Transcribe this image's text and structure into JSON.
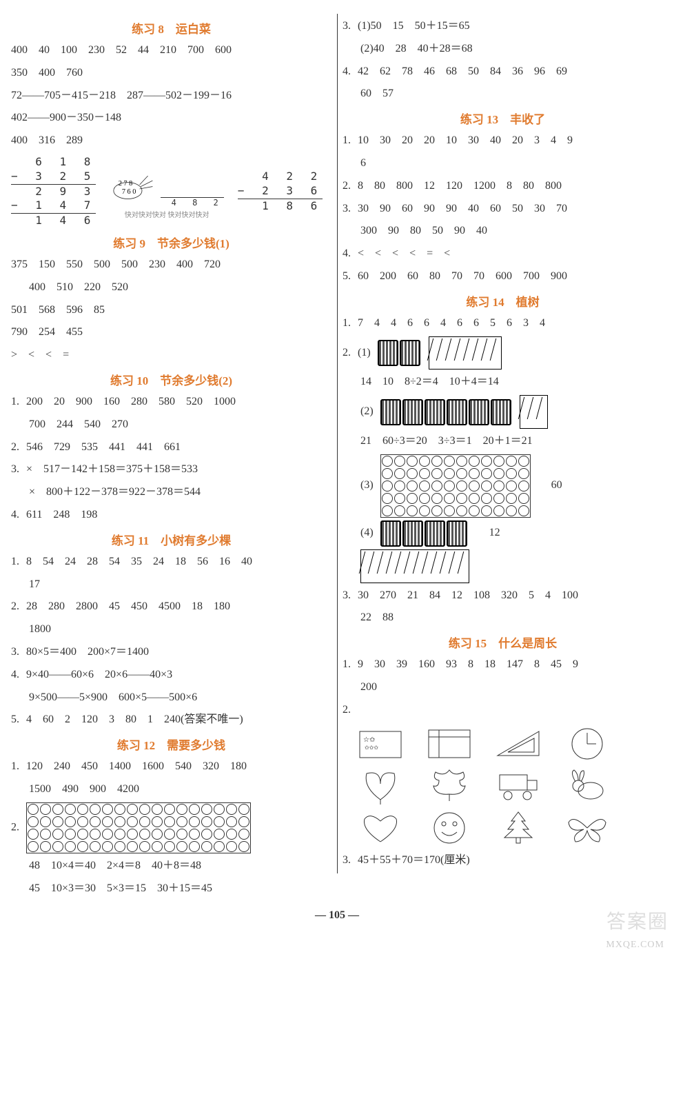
{
  "left": {
    "s8": {
      "title": "练习 8　运白菜",
      "r1": "400　40　100　230　52　44　210　700　600",
      "r2": "350　400　760",
      "r3": "72——705－415－218　287——502－199－16",
      "r4": "402——900－350－148",
      "r5": "400　316　289",
      "carrot_note": "快对快对快对\n快对快对快对"
    },
    "s9": {
      "title": "练习 9　节余多少钱(1)",
      "r1": "375　150　550　500　500　230　400　720",
      "r2": "400　510　220　520",
      "r3": "501　568　596　85",
      "r4": "790　254　455",
      "r5": ">　<　<　="
    },
    "s10": {
      "title": "练习 10　节余多少钱(2)",
      "r1": "1. 200　20　900　160　280　580　520　1000",
      "r2": "700　244　540　270",
      "r3": "2. 546　729　535　441　441　661",
      "r4": "3. ×　517－142＋158＝375＋158＝533",
      "r5": "×　800＋122－378＝922－378＝544",
      "r6": "4. 611　248　198"
    },
    "s11": {
      "title": "练习 11　小树有多少棵",
      "r1": "1. 8　54　24　28　54　35　24　18　56　16　40",
      "r2": "17",
      "r3": "2. 28　280　2800　45　450　4500　18　180",
      "r4": "1800",
      "r5": "3. 80×5＝400　200×7＝1400",
      "r6": "4. 9×40——60×6　20×6——40×3",
      "r7": "9×500——5×900　600×5——500×6",
      "r8": "5. 4　60　2　120　3　80　1　240(答案不唯一)"
    },
    "s12": {
      "title": "练习 12　需要多少钱",
      "r1": "1. 120　240　450　1400　1600　540　320　180",
      "r2": "1500　490　900　4200",
      "r3": "2.",
      "r4": "48　10×4＝40　2×4＝8　40＋8＝48",
      "r5": "45　10×3＝30　5×3＝15　30＋15＝45"
    }
  },
  "right": {
    "top": {
      "r1": "3. (1)50　15　50＋15＝65",
      "r2": "(2)40　28　40＋28＝68",
      "r3": "4. 42　62　78　46　68　50　84　36　96　69",
      "r4": "60　57"
    },
    "s13": {
      "title": "练习 13　丰收了",
      "r1": "1. 10　30　20　20　10　30　40　20　3　4　9",
      "r2": "6",
      "r3": "2. 8　80　800　12　120　1200　8　80　800",
      "r4": "3. 30　90　60　90　90　40　60　50　30　70",
      "r5": "300　90　80　50　90　40",
      "r6": "4. <　<　<　<　=　<",
      "r7": "5. 60　200　60　80　70　70　600　700　900"
    },
    "s14": {
      "title": "练习 14　植树",
      "r1": "1. 7　4　4　6　6　4　6　6　5　6　3　4",
      "p1_label": "2. (1)",
      "p1_calc": "14　10　8÷2＝4　10＋4＝14",
      "p2_label": "(2)",
      "p2_calc": "21　60÷3＝20　3÷3＝1　20＋1＝21",
      "p3_label": "(3)",
      "p3_side": "60",
      "p4_label": "(4)",
      "p4_side": "12",
      "r3": "3. 30　270　21　84　12　108　320　5　4　100",
      "r4": "22　88"
    },
    "s15": {
      "title": "练习 15　什么是周长",
      "r1": "1. 9　30　39　160　93　8　18　147　8　45　9",
      "r2": "200",
      "r3": "2.",
      "r4": "3. 45＋55＋70＝170(厘米)"
    }
  },
  "page_num": "— 105 —",
  "watermark": "答案圈",
  "site": "MXQE.COM",
  "colors": {
    "title": "#e07b2f",
    "text": "#333333"
  }
}
